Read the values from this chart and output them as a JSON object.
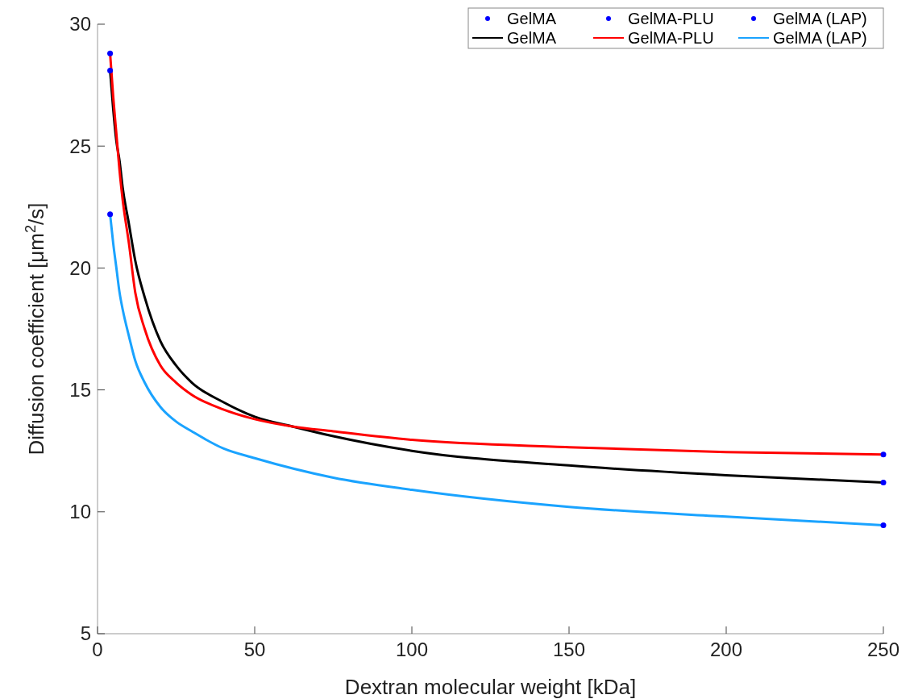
{
  "chart_data": {
    "type": "line",
    "xlabel": "Dextran molecular weight [kDa]",
    "ylabel": "Diffusion coefficient [μm$^{2}$/s]",
    "xlim": [
      0,
      250
    ],
    "xticks": [
      0,
      50,
      100,
      150,
      200,
      250
    ],
    "ylim": [
      5,
      30
    ],
    "yticks": [
      5,
      10,
      15,
      20,
      25,
      30
    ],
    "grid": false,
    "legend": "top right",
    "series": [
      {
        "name": "GelMA",
        "type": "scatter",
        "marker": "circle",
        "color": "#0000ff",
        "x": [
          4,
          250
        ],
        "values": [
          28.1,
          11.2
        ]
      },
      {
        "name": "GelMA-PLU",
        "type": "scatter",
        "marker": "circle",
        "color": "#0000ff",
        "x": [
          4,
          250
        ],
        "values": [
          28.8,
          12.35
        ]
      },
      {
        "name": "GelMA (LAP)",
        "type": "scatter",
        "marker": "circle",
        "color": "#0000ff",
        "x": [
          4,
          250
        ],
        "values": [
          22.2,
          9.45
        ]
      },
      {
        "name": "GelMA",
        "color": "#000000",
        "x": [
          4,
          5,
          6,
          7,
          8,
          10,
          12,
          15,
          20,
          25,
          30,
          40,
          50,
          62,
          75,
          100,
          150,
          200,
          250
        ],
        "values": [
          28.1,
          26.5,
          25.2,
          24.4,
          23.3,
          21.8,
          20.3,
          18.8,
          17.0,
          16,
          15.3,
          14.5,
          13.9,
          13.5,
          13.1,
          12.5,
          11.9,
          11.5,
          11.2
        ]
      },
      {
        "name": "GelMA-PLU",
        "color": "#ff0000",
        "x": [
          4,
          5,
          6,
          7,
          8,
          10,
          12,
          15,
          20,
          25,
          30,
          40,
          50,
          62,
          75,
          100,
          150,
          200,
          250
        ],
        "values": [
          28.8,
          27,
          25.5,
          24,
          22.8,
          21,
          19,
          17.5,
          16.0,
          15.3,
          14.8,
          14.2,
          13.8,
          13.5,
          13.3,
          12.95,
          12.65,
          12.45,
          12.35
        ]
      },
      {
        "name": "GelMA (LAP)",
        "color": "#1aa3ff",
        "x": [
          4,
          5,
          6,
          7,
          8,
          10,
          12,
          15,
          20,
          25,
          30,
          40,
          50,
          75,
          100,
          150,
          200,
          250
        ],
        "values": [
          22.2,
          21,
          20,
          19,
          18.3,
          17.2,
          16.2,
          15.3,
          14.3,
          13.7,
          13.3,
          12.6,
          12.2,
          11.4,
          10.9,
          10.2,
          9.8,
          9.45
        ]
      }
    ]
  }
}
